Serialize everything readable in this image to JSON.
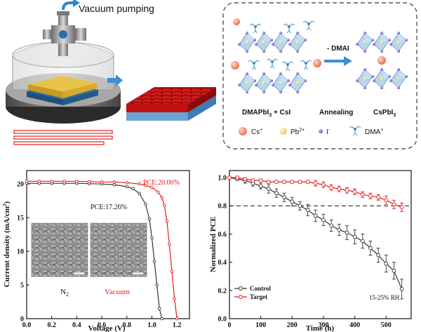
{
  "panel_a": {
    "vacuum_label": "Vacuum pumping"
  },
  "panel_b": {
    "reactant_label": "DMAPbI",
    "reactant_sub": "3",
    "reactant_suffix": " + CsI",
    "reaction_label": "- DMAI",
    "process_label": "Annealing",
    "product_label": "CsPbI",
    "product_sub": "3",
    "legend": [
      {
        "text": "Cs",
        "sup": "+",
        "color": "#f08a70",
        "shape": "large-sphere"
      },
      {
        "text": "Pb",
        "sup": "2+",
        "color": "#f2de80",
        "shape": "sphere"
      },
      {
        "text": "I",
        "sup": "-",
        "color": "#8a5bc4",
        "shape": "small-sphere"
      },
      {
        "text": "DMA",
        "sup": "+",
        "color": "#4a9cc2",
        "shape": "molecule"
      }
    ]
  },
  "panel_c": {
    "ylabel": "Current density (mA/cm",
    "ylabel_sup": "2",
    "ylabel_end": ")",
    "xlabel": "Voltage (V)",
    "pce_vacuum": "PCE:20.06%",
    "pce_n2": "PCE:17.26%",
    "inset_left_label": "N",
    "inset_left_sub": "2",
    "inset_right_label": "Vacuum",
    "colors": {
      "n2": "#333333",
      "vacuum": "#e31a1c"
    }
  },
  "panel_d": {
    "ylabel": "Normalized PCE",
    "xlabel": "Time (h)",
    "condition": "15-25% RH",
    "legend": [
      "Control",
      "Target"
    ],
    "colors": {
      "control": "#333333",
      "target": "#e31a1c"
    }
  },
  "chart_data": [
    {
      "type": "line",
      "xlabel": "Voltage (V)",
      "ylabel": "Current density (mA/cm2)",
      "xlim": [
        0.0,
        1.3
      ],
      "ylim": [
        0,
        22
      ],
      "xticks": [
        "0.0",
        "0.2",
        "0.4",
        "0.6",
        "0.8",
        "1.0",
        "1.2"
      ],
      "yticks": [
        "0",
        "5",
        "10",
        "15",
        "20"
      ],
      "series": [
        {
          "name": "N2",
          "x": [
            0.0,
            0.1,
            0.2,
            0.3,
            0.4,
            0.5,
            0.6,
            0.7,
            0.8,
            0.85,
            0.9,
            0.95,
            0.98,
            1.0,
            1.02,
            1.04,
            1.06,
            1.08
          ],
          "values": [
            20.1,
            20.1,
            20.1,
            20.1,
            20.1,
            20.05,
            20.0,
            19.9,
            19.6,
            19.3,
            18.6,
            17.0,
            14.8,
            12.0,
            8.5,
            5.0,
            1.5,
            0.0
          ]
        },
        {
          "name": "Vacuum",
          "x": [
            0.0,
            0.1,
            0.2,
            0.3,
            0.4,
            0.5,
            0.6,
            0.7,
            0.8,
            0.9,
            0.95,
            1.0,
            1.05,
            1.08,
            1.1,
            1.12,
            1.14,
            1.16,
            1.18,
            1.2
          ],
          "values": [
            20.4,
            20.4,
            20.4,
            20.4,
            20.4,
            20.35,
            20.3,
            20.3,
            20.2,
            20.0,
            19.8,
            19.5,
            18.8,
            18.0,
            16.8,
            14.5,
            11.0,
            7.0,
            3.0,
            0.0
          ]
        }
      ]
    },
    {
      "type": "line",
      "xlabel": "Time (h)",
      "ylabel": "Normalized PCE",
      "xlim": [
        0,
        580
      ],
      "ylim": [
        0.0,
        1.05
      ],
      "xticks": [
        "0",
        "100",
        "200",
        "300",
        "400",
        "500"
      ],
      "yticks": [
        "0.0",
        "0.2",
        "0.4",
        "0.6",
        "0.8",
        "1.0"
      ],
      "reference_line": 0.8,
      "series": [
        {
          "name": "Control",
          "x": [
            0,
            25,
            50,
            75,
            100,
            125,
            150,
            175,
            200,
            225,
            250,
            275,
            300,
            325,
            350,
            375,
            400,
            425,
            450,
            475,
            500,
            525,
            550
          ],
          "values": [
            1.0,
            0.99,
            0.98,
            0.96,
            0.94,
            0.92,
            0.89,
            0.86,
            0.83,
            0.8,
            0.77,
            0.73,
            0.7,
            0.66,
            0.63,
            0.61,
            0.58,
            0.55,
            0.5,
            0.45,
            0.39,
            0.34,
            0.21
          ],
          "error": [
            0,
            0.01,
            0.02,
            0.02,
            0.02,
            0.03,
            0.03,
            0.03,
            0.03,
            0.03,
            0.04,
            0.04,
            0.04,
            0.04,
            0.04,
            0.05,
            0.05,
            0.05,
            0.05,
            0.05,
            0.06,
            0.06,
            0.07
          ]
        },
        {
          "name": "Target",
          "x": [
            0,
            25,
            50,
            75,
            100,
            125,
            150,
            175,
            200,
            225,
            250,
            275,
            300,
            325,
            350,
            375,
            400,
            425,
            450,
            475,
            500,
            525,
            550
          ],
          "values": [
            1.0,
            1.0,
            0.99,
            0.98,
            0.98,
            0.97,
            0.97,
            0.97,
            0.97,
            0.97,
            0.97,
            0.96,
            0.95,
            0.93,
            0.92,
            0.91,
            0.9,
            0.88,
            0.87,
            0.86,
            0.84,
            0.81,
            0.79
          ],
          "error": [
            0,
            0.01,
            0.01,
            0.01,
            0.01,
            0.01,
            0.01,
            0.01,
            0.01,
            0.01,
            0.01,
            0.02,
            0.02,
            0.02,
            0.02,
            0.02,
            0.02,
            0.02,
            0.02,
            0.02,
            0.03,
            0.03,
            0.03
          ]
        }
      ]
    }
  ]
}
